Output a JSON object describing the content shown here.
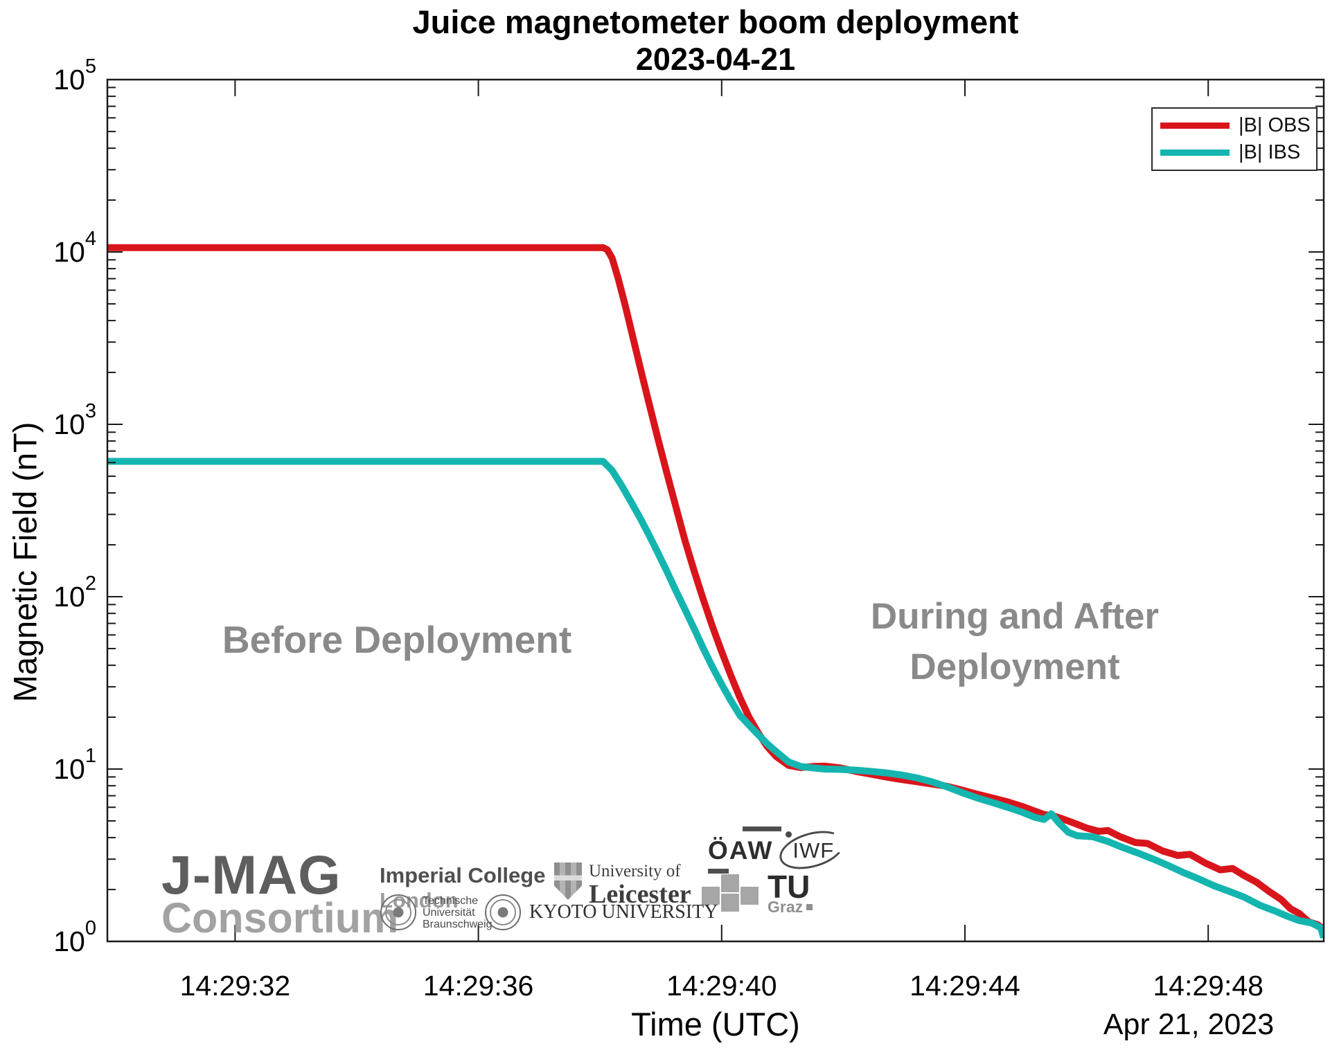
{
  "title": {
    "line1": "Juice magnetometer boom deployment",
    "line2": "2023-04-21"
  },
  "axes": {
    "xlabel": "Time (UTC)",
    "xdate": "Apr 21, 2023",
    "ylabel": "Magnetic Field (nT)"
  },
  "annotations": {
    "before": "Before Deployment",
    "during_line1": "During and After",
    "during_line2": "Deployment"
  },
  "legend": {
    "items": [
      {
        "label": "|B| OBS",
        "color": "#d9151c"
      },
      {
        "label": "|B| IBS",
        "color": "#14b5af"
      }
    ]
  },
  "logos": {
    "jmag_line1": "J-MAG",
    "jmag_line2": "Consortium",
    "imperial_line1": "Imperial College",
    "imperial_line2": "London",
    "leicester_line1": "University of",
    "leicester_line2": "Leicester",
    "tubs_line1": "Technische",
    "tubs_line2": "Universität",
    "tubs_line3": "Braunschweig",
    "kyoto": "KYOTO UNIVERSITY",
    "oaw": "ÖAW",
    "iwf": "IWF",
    "tugraz_line1": "TU",
    "tugraz_line2": "Graz"
  },
  "chart_data": {
    "type": "line",
    "title": "Juice magnetometer boom deployment",
    "subtitle": "2023-04-21",
    "xlabel": "Time (UTC)",
    "x_axis_date": "Apr 21, 2023",
    "ylabel": "Magnetic Field (nT)",
    "yscale": "log",
    "ylim": [
      1,
      100000
    ],
    "xlim": [
      "14:29:29.9",
      "14:29:49.9"
    ],
    "grid": false,
    "legend_position": "top-right",
    "x_ticks": [
      {
        "seconds": 32,
        "label": "14:29:32"
      },
      {
        "seconds": 36,
        "label": "14:29:36"
      },
      {
        "seconds": 40,
        "label": "14:29:40"
      },
      {
        "seconds": 44,
        "label": "14:29:44"
      },
      {
        "seconds": 48,
        "label": "14:29:48"
      }
    ],
    "y_ticks": [
      {
        "exp": 0,
        "label": "10⁰"
      },
      {
        "exp": 1,
        "label": "10¹"
      },
      {
        "exp": 2,
        "label": "10²"
      },
      {
        "exp": 3,
        "label": "10³"
      },
      {
        "exp": 4,
        "label": "10⁴"
      },
      {
        "exp": 5,
        "label": "10⁵"
      }
    ],
    "annotations": [
      {
        "text": "Before Deployment",
        "x": "14:29:34.8",
        "y": 55
      },
      {
        "text": "During and After Deployment",
        "x": "14:29:44.9",
        "y": 70
      }
    ],
    "series": [
      {
        "name": "|B| OBS",
        "color": "#d9151c",
        "points_format": [
          "seconds_after_14:29:00",
          "nT"
        ],
        "points": [
          [
            29.9,
            10600
          ],
          [
            38.05,
            10600
          ],
          [
            38.12,
            10300
          ],
          [
            38.2,
            9200
          ],
          [
            38.3,
            7000
          ],
          [
            38.42,
            4800
          ],
          [
            38.55,
            3100
          ],
          [
            38.68,
            2000
          ],
          [
            38.8,
            1350
          ],
          [
            38.95,
            830
          ],
          [
            39.1,
            520
          ],
          [
            39.25,
            330
          ],
          [
            39.4,
            210
          ],
          [
            39.55,
            140
          ],
          [
            39.7,
            96
          ],
          [
            39.85,
            67
          ],
          [
            40.0,
            48
          ],
          [
            40.15,
            35
          ],
          [
            40.3,
            26
          ],
          [
            40.45,
            20
          ],
          [
            40.6,
            16.2
          ],
          [
            40.75,
            13.5
          ],
          [
            40.9,
            11.8
          ],
          [
            41.1,
            10.5
          ],
          [
            41.3,
            10.2
          ],
          [
            41.5,
            10.35
          ],
          [
            41.7,
            10.4
          ],
          [
            41.95,
            10.15
          ],
          [
            42.2,
            9.7
          ],
          [
            42.45,
            9.35
          ],
          [
            42.7,
            9.0
          ],
          [
            42.95,
            8.7
          ],
          [
            43.2,
            8.45
          ],
          [
            43.45,
            8.2
          ],
          [
            43.7,
            7.95
          ],
          [
            43.95,
            7.55
          ],
          [
            44.2,
            7.15
          ],
          [
            44.45,
            6.8
          ],
          [
            44.7,
            6.45
          ],
          [
            44.95,
            6.05
          ],
          [
            45.15,
            5.7
          ],
          [
            45.3,
            5.45
          ],
          [
            45.45,
            5.35
          ],
          [
            45.6,
            5.15
          ],
          [
            45.8,
            4.85
          ],
          [
            46.0,
            4.55
          ],
          [
            46.2,
            4.35
          ],
          [
            46.35,
            4.4
          ],
          [
            46.55,
            4.05
          ],
          [
            46.8,
            3.75
          ],
          [
            47.0,
            3.7
          ],
          [
            47.25,
            3.35
          ],
          [
            47.5,
            3.15
          ],
          [
            47.7,
            3.2
          ],
          [
            47.95,
            2.85
          ],
          [
            48.2,
            2.6
          ],
          [
            48.4,
            2.65
          ],
          [
            48.6,
            2.4
          ],
          [
            48.8,
            2.2
          ],
          [
            49.0,
            1.95
          ],
          [
            49.2,
            1.75
          ],
          [
            49.35,
            1.55
          ],
          [
            49.5,
            1.45
          ],
          [
            49.65,
            1.3
          ],
          [
            49.8,
            1.25
          ],
          [
            49.9,
            1.18
          ]
        ]
      },
      {
        "name": "|B| IBS",
        "color": "#14b5af",
        "points_format": [
          "seconds_after_14:29:00",
          "nT"
        ],
        "points": [
          [
            29.9,
            610
          ],
          [
            38.05,
            610
          ],
          [
            38.2,
            540
          ],
          [
            38.35,
            445
          ],
          [
            38.5,
            360
          ],
          [
            38.65,
            290
          ],
          [
            38.8,
            230
          ],
          [
            38.95,
            180
          ],
          [
            39.1,
            140
          ],
          [
            39.25,
            108
          ],
          [
            39.4,
            84
          ],
          [
            39.55,
            65
          ],
          [
            39.7,
            50
          ],
          [
            39.85,
            39
          ],
          [
            40.0,
            31
          ],
          [
            40.15,
            25
          ],
          [
            40.3,
            20.5
          ],
          [
            40.45,
            18
          ],
          [
            40.55,
            16.5
          ],
          [
            40.75,
            14.0
          ],
          [
            40.9,
            12.6
          ],
          [
            41.1,
            11.0
          ],
          [
            41.3,
            10.35
          ],
          [
            41.5,
            10.15
          ],
          [
            41.7,
            10.0
          ],
          [
            41.95,
            9.95
          ],
          [
            42.2,
            9.85
          ],
          [
            42.45,
            9.7
          ],
          [
            42.7,
            9.5
          ],
          [
            42.95,
            9.25
          ],
          [
            43.2,
            8.9
          ],
          [
            43.45,
            8.45
          ],
          [
            43.7,
            7.9
          ],
          [
            43.95,
            7.3
          ],
          [
            44.2,
            6.8
          ],
          [
            44.45,
            6.4
          ],
          [
            44.7,
            6.0
          ],
          [
            44.95,
            5.6
          ],
          [
            45.15,
            5.25
          ],
          [
            45.3,
            5.1
          ],
          [
            45.42,
            5.5
          ],
          [
            45.55,
            4.85
          ],
          [
            45.7,
            4.3
          ],
          [
            45.85,
            4.1
          ],
          [
            46.1,
            4.05
          ],
          [
            46.35,
            3.8
          ],
          [
            46.6,
            3.5
          ],
          [
            46.85,
            3.25
          ],
          [
            47.1,
            3.0
          ],
          [
            47.35,
            2.75
          ],
          [
            47.6,
            2.5
          ],
          [
            47.85,
            2.3
          ],
          [
            48.1,
            2.1
          ],
          [
            48.35,
            1.95
          ],
          [
            48.6,
            1.8
          ],
          [
            48.85,
            1.62
          ],
          [
            49.1,
            1.5
          ],
          [
            49.3,
            1.4
          ],
          [
            49.5,
            1.32
          ],
          [
            49.7,
            1.28
          ],
          [
            49.85,
            1.2
          ],
          [
            49.9,
            1.05
          ]
        ]
      }
    ]
  }
}
